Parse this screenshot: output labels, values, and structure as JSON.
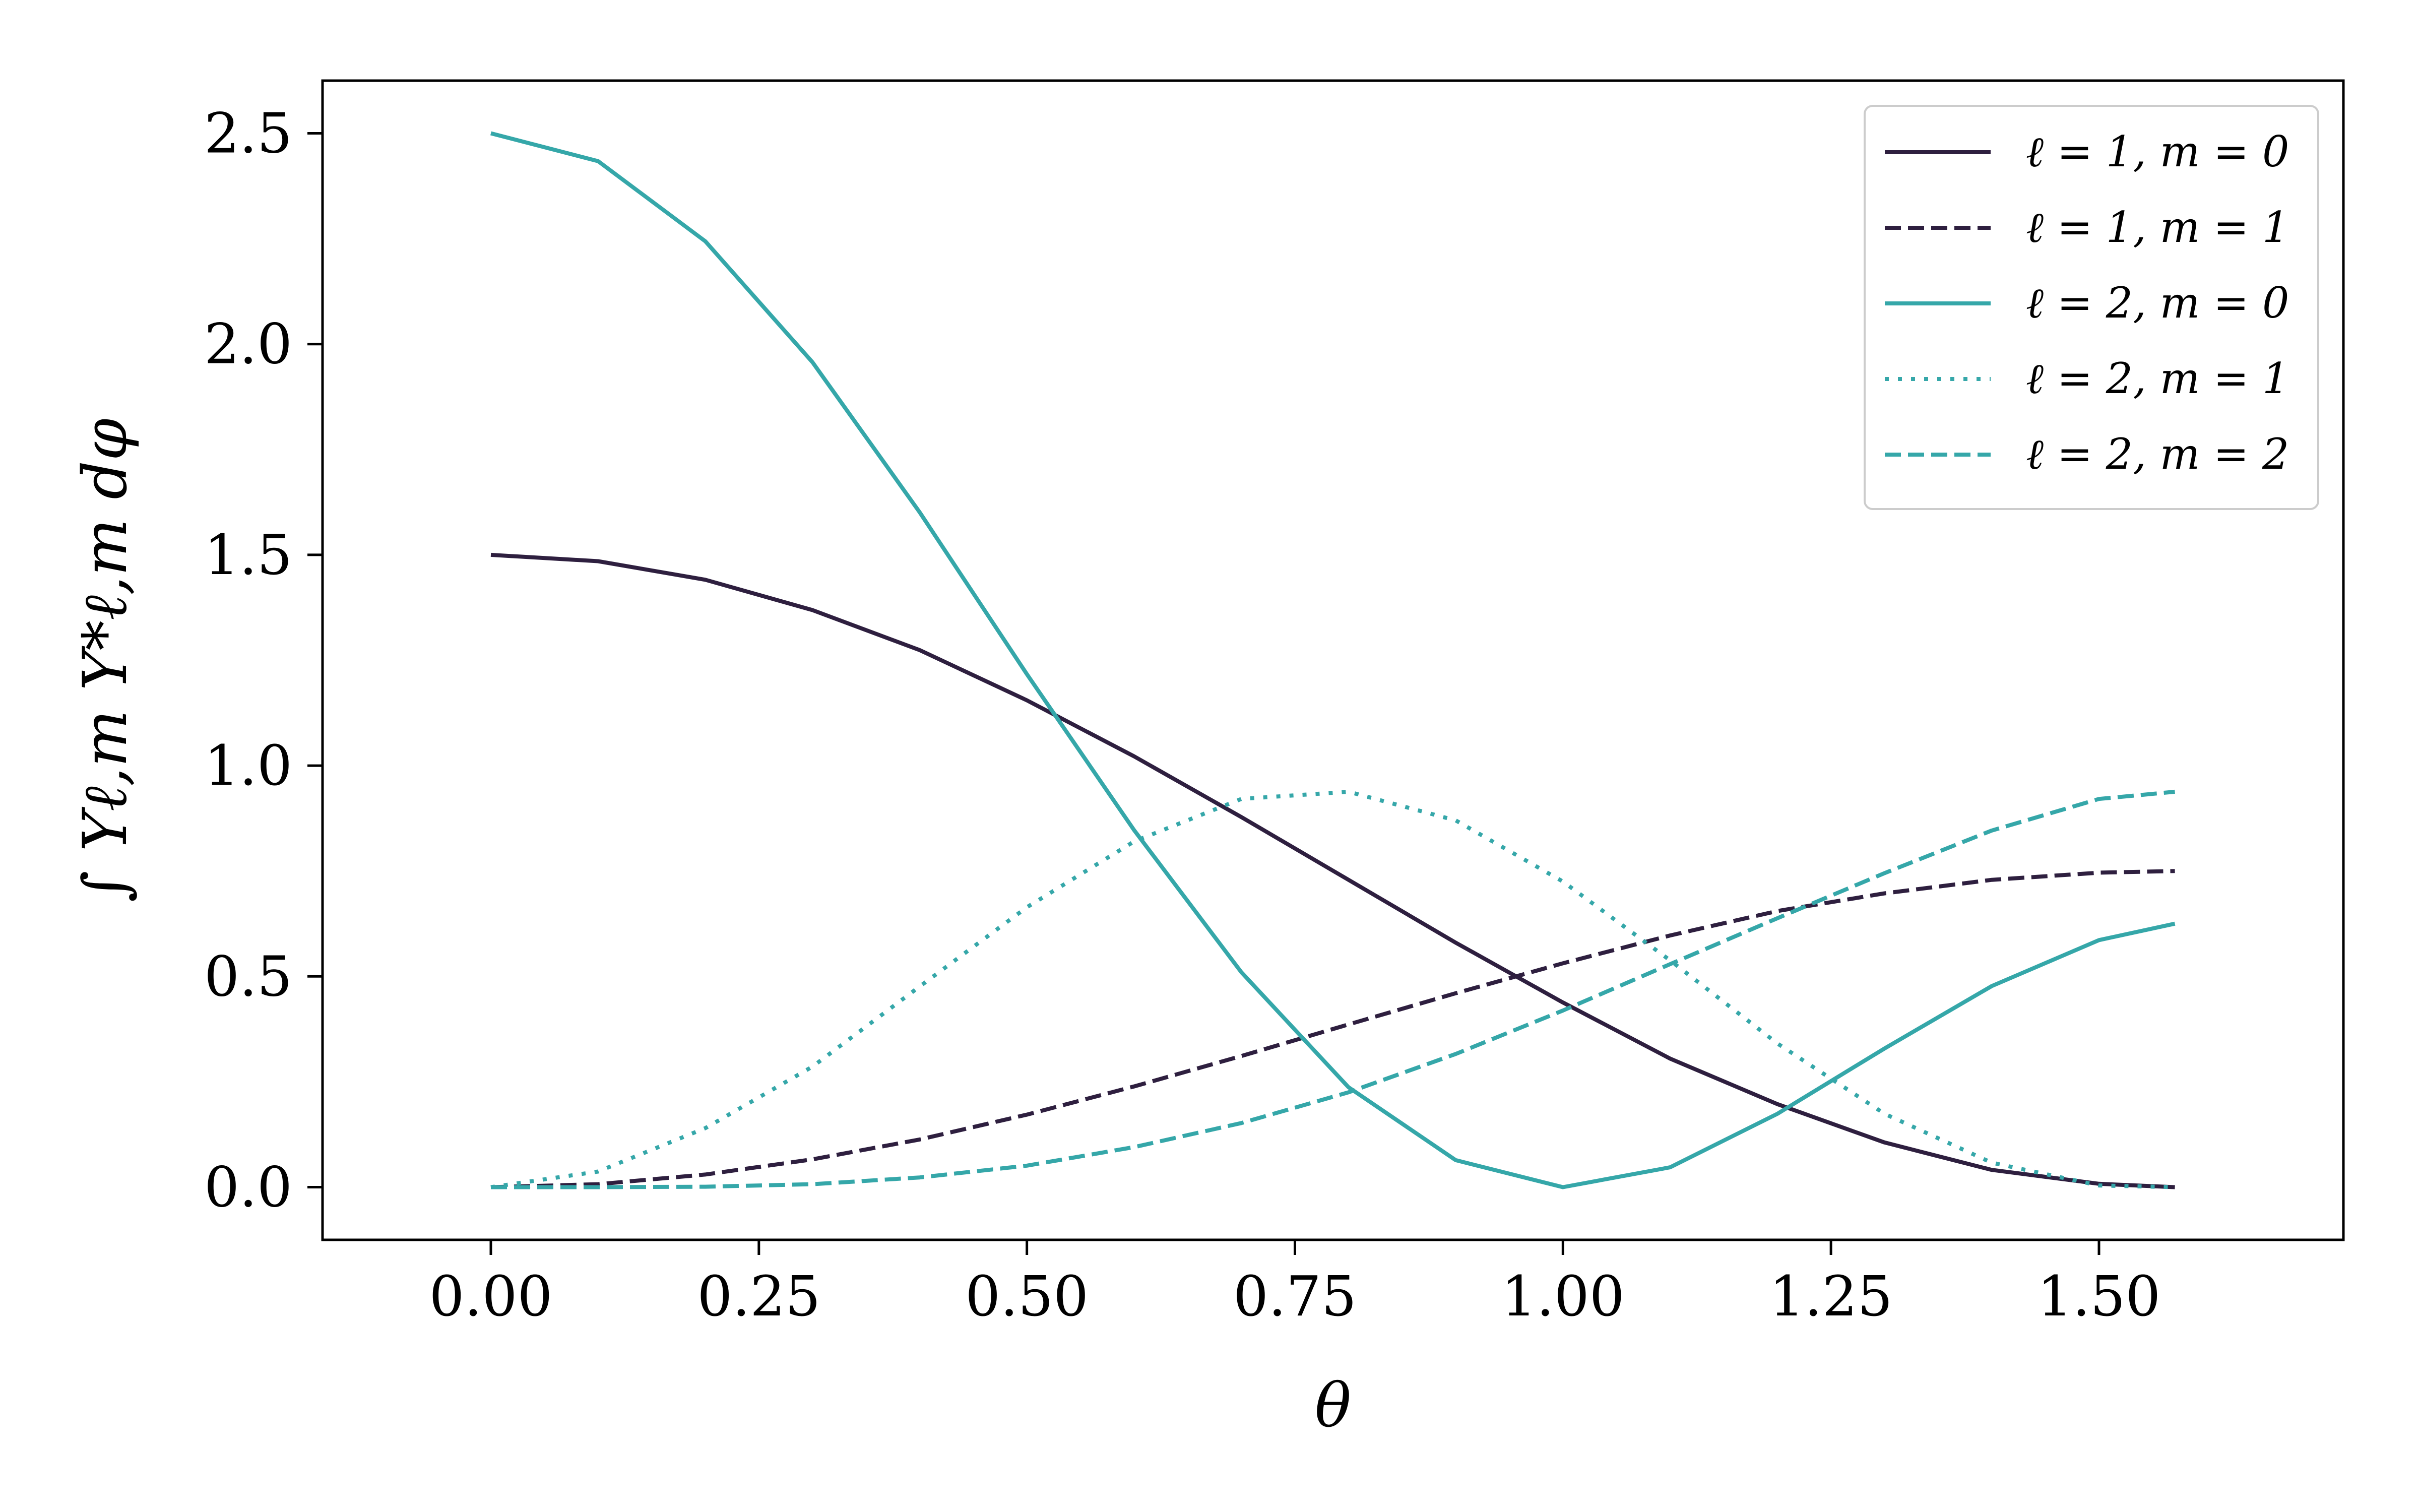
{
  "chart_data": {
    "type": "line",
    "xlabel": "θ",
    "ylabel": "∫ Yℓ,m Y*ℓ,m dφ",
    "xlim": [
      -0.157,
      1.728
    ],
    "ylim": [
      -0.125,
      2.625
    ],
    "x_ticks": [
      "0.00",
      "0.25",
      "0.50",
      "0.75",
      "1.00",
      "1.25",
      "1.50"
    ],
    "x_tick_values": [
      0,
      0.25,
      0.5,
      0.75,
      1.0,
      1.25,
      1.5
    ],
    "y_ticks": [
      "0.0",
      "0.5",
      "1.0",
      "1.5",
      "2.0",
      "2.5"
    ],
    "y_tick_values": [
      0,
      0.5,
      1.0,
      1.5,
      2.0,
      2.5
    ],
    "grid": false,
    "legend_position": "top-right",
    "x": [
      0,
      0.1,
      0.2,
      0.3,
      0.4,
      0.5,
      0.6,
      0.7,
      0.8,
      0.9,
      1.0,
      1.1,
      1.2,
      1.3,
      1.4,
      1.5,
      1.5708
    ],
    "series": [
      {
        "name": "ℓ = 1, m = 0",
        "color": "#2e1f3f",
        "dash": "solid",
        "values": [
          1.5,
          1.485,
          1.441,
          1.369,
          1.274,
          1.155,
          1.022,
          0.878,
          0.729,
          0.58,
          0.438,
          0.305,
          0.197,
          0.106,
          0.041,
          0.008,
          0.0
        ]
      },
      {
        "name": "ℓ = 1, m = 1",
        "color": "#2e1f3f",
        "dash": "dashed",
        "values": [
          0.0,
          0.007,
          0.03,
          0.066,
          0.113,
          0.172,
          0.239,
          0.311,
          0.386,
          0.46,
          0.531,
          0.597,
          0.655,
          0.697,
          0.729,
          0.746,
          0.75
        ]
      },
      {
        "name": "ℓ = 2, m = 0",
        "color": "#35a7a9",
        "dash": "solid",
        "values": [
          2.5,
          2.434,
          2.244,
          1.957,
          1.601,
          1.217,
          0.847,
          0.51,
          0.237,
          0.064,
          0.0,
          0.047,
          0.174,
          0.329,
          0.477,
          0.586,
          0.625
        ]
      },
      {
        "name": "ℓ = 2, m = 1",
        "color": "#35a7a9",
        "dash": "dotted",
        "values": [
          0.0,
          0.037,
          0.14,
          0.286,
          0.476,
          0.664,
          0.82,
          0.921,
          0.938,
          0.87,
          0.725,
          0.538,
          0.341,
          0.174,
          0.058,
          0.004,
          0.0
        ]
      },
      {
        "name": "ℓ = 2, m = 2",
        "color": "#35a7a9",
        "dash": "dashed",
        "values": [
          0.0,
          0.0,
          0.001,
          0.007,
          0.023,
          0.051,
          0.095,
          0.152,
          0.225,
          0.316,
          0.419,
          0.529,
          0.638,
          0.745,
          0.846,
          0.921,
          0.938
        ]
      }
    ]
  }
}
